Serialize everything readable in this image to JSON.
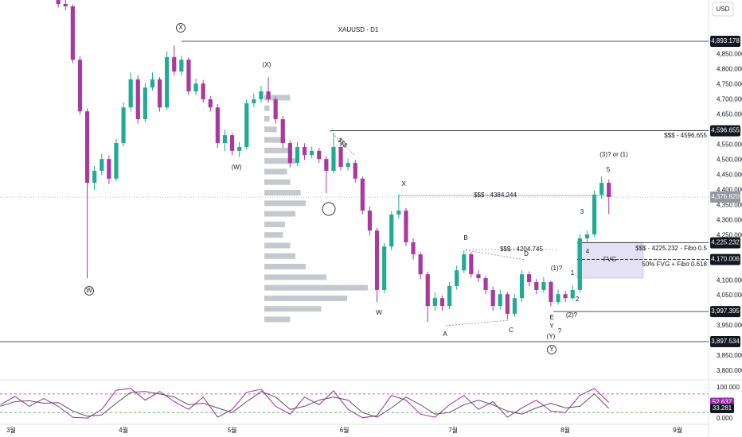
{
  "chart_data": {
    "type": "candlestick",
    "title": "XAUUSD · D1",
    "currency": "USD",
    "up_color": "#22ab94",
    "down_color": "#a9399f",
    "x": [
      13,
      15,
      17,
      19,
      21,
      23,
      25,
      27,
      29,
      31,
      33,
      35,
      37,
      39,
      41,
      43,
      45,
      47,
      49,
      51,
      53,
      55,
      57,
      59,
      61,
      63,
      65,
      67,
      69,
      71,
      73,
      75,
      77,
      79,
      81,
      83,
      85,
      87,
      89,
      91,
      93,
      95,
      97,
      99,
      101,
      103,
      105,
      107,
      109,
      111,
      113,
      115,
      117,
      119,
      121,
      123,
      125,
      127,
      129,
      131,
      133,
      135,
      137,
      139,
      141,
      143,
      145,
      147,
      149,
      151,
      153,
      155,
      157,
      159,
      161,
      163,
      165
    ],
    "ohlc": [
      [
        5030,
        5045,
        5005,
        5017
      ],
      [
        5017,
        5030,
        4995,
        5009
      ],
      [
        5009,
        5015,
        4820,
        4832
      ],
      [
        4832,
        4845,
        4650,
        4661
      ],
      [
        4661,
        4670,
        4108,
        4424
      ],
      [
        4424,
        4480,
        4400,
        4464
      ],
      [
        4464,
        4520,
        4450,
        4503
      ],
      [
        4503,
        4515,
        4420,
        4438
      ],
      [
        4438,
        4570,
        4430,
        4556
      ],
      [
        4556,
        4690,
        4545,
        4674
      ],
      [
        4674,
        4790,
        4660,
        4767
      ],
      [
        4767,
        4780,
        4620,
        4635
      ],
      [
        4635,
        4755,
        4625,
        4740
      ],
      [
        4740,
        4790,
        4730,
        4767
      ],
      [
        4767,
        4775,
        4660,
        4674
      ],
      [
        4674,
        4860,
        4665,
        4841
      ],
      [
        4841,
        4880,
        4780,
        4793
      ],
      [
        4793,
        4845,
        4780,
        4832
      ],
      [
        4832,
        4840,
        4715,
        4727
      ],
      [
        4727,
        4770,
        4715,
        4753
      ],
      [
        4753,
        4765,
        4690,
        4701
      ],
      [
        4701,
        4712,
        4660,
        4674
      ],
      [
        4674,
        4685,
        4540,
        4556
      ],
      [
        4556,
        4600,
        4530,
        4582
      ],
      [
        4582,
        4590,
        4515,
        4530
      ],
      [
        4530,
        4560,
        4510,
        4543
      ],
      [
        4543,
        4700,
        4535,
        4688
      ],
      [
        4688,
        4720,
        4675,
        4701
      ],
      [
        4701,
        4745,
        4690,
        4727
      ],
      [
        4727,
        4774,
        4690,
        4701
      ],
      [
        4701,
        4710,
        4620,
        4635
      ],
      [
        4635,
        4645,
        4540,
        4556
      ],
      [
        4556,
        4565,
        4475,
        4490
      ],
      [
        4490,
        4560,
        4480,
        4543
      ],
      [
        4543,
        4555,
        4500,
        4516
      ],
      [
        4516,
        4545,
        4505,
        4530
      ],
      [
        4530,
        4540,
        4490,
        4503
      ],
      [
        4503,
        4512,
        4390,
        4464
      ],
      [
        4464,
        4590,
        4455,
        4543
      ],
      [
        4543,
        4555,
        4465,
        4477
      ],
      [
        4477,
        4505,
        4465,
        4490
      ],
      [
        4490,
        4500,
        4425,
        4438
      ],
      [
        4438,
        4445,
        4320,
        4332
      ],
      [
        4332,
        4345,
        4250,
        4266
      ],
      [
        4266,
        4275,
        4029,
        4069
      ],
      [
        4069,
        4225,
        4060,
        4213
      ],
      [
        4213,
        4330,
        4200,
        4319
      ],
      [
        4319,
        4385,
        4305,
        4332
      ],
      [
        4332,
        4340,
        4215,
        4227
      ],
      [
        4227,
        4240,
        4170,
        4187
      ],
      [
        4187,
        4195,
        4105,
        4121
      ],
      [
        4121,
        4130,
        3963,
        4016
      ],
      [
        4016,
        4060,
        4000,
        4042
      ],
      [
        4042,
        4050,
        4000,
        4016
      ],
      [
        4016,
        4095,
        4005,
        4082
      ],
      [
        4082,
        4150,
        4070,
        4134
      ],
      [
        4134,
        4200,
        4125,
        4187
      ],
      [
        4187,
        4195,
        4110,
        4121
      ],
      [
        4121,
        4135,
        4095,
        4108
      ],
      [
        4108,
        4115,
        4055,
        4069
      ],
      [
        4069,
        4080,
        4000,
        4016
      ],
      [
        4016,
        4070,
        4005,
        4055
      ],
      [
        4055,
        4062,
        3971,
        3990
      ],
      [
        3990,
        4055,
        3980,
        4042
      ],
      [
        4042,
        4135,
        4030,
        4121
      ],
      [
        4121,
        4130,
        4080,
        4095
      ],
      [
        4095,
        4105,
        4055,
        4069
      ],
      [
        4069,
        4110,
        4060,
        4095
      ],
      [
        4095,
        4100,
        4015,
        4029
      ],
      [
        4029,
        4070,
        4020,
        4055
      ],
      [
        4055,
        4065,
        4030,
        4042
      ],
      [
        4042,
        4085,
        4035,
        4069
      ],
      [
        4069,
        4255,
        4060,
        4240
      ],
      [
        4240,
        4265,
        4225,
        4253
      ],
      [
        4253,
        4400,
        4245,
        4385
      ],
      [
        4385,
        4445,
        4370,
        4424
      ],
      [
        4424,
        4435,
        4320,
        4377
      ]
    ],
    "xlim": [
      -3.08,
      192.53
    ],
    "xticks": [
      {
        "value": 0,
        "label": "3월"
      },
      {
        "value": 31,
        "label": "4월"
      },
      {
        "value": 61,
        "label": "5월"
      },
      {
        "value": 92,
        "label": "6월"
      },
      {
        "value": 122,
        "label": "7월"
      },
      {
        "value": 153,
        "label": "8월"
      },
      {
        "value": 184,
        "label": "9월"
      }
    ],
    "ylim": [
      3771.2,
      5030.1
    ],
    "yticks": [
      {
        "value": 4850,
        "label": "4,850.000"
      },
      {
        "value": 4800,
        "label": "4,800.000"
      },
      {
        "value": 4750,
        "label": "4,750.000"
      },
      {
        "value": 4700,
        "label": "4,700.000"
      },
      {
        "value": 4650,
        "label": "4,650.000"
      },
      {
        "value": 4550,
        "label": "4,550.000"
      },
      {
        "value": 4500,
        "label": "4,500.000"
      },
      {
        "value": 4450,
        "label": "4,450.000"
      },
      {
        "value": 4400,
        "label": "4,400.000"
      },
      {
        "value": 4350,
        "label": "4,350.000"
      },
      {
        "value": 4300,
        "label": "4,300.000"
      },
      {
        "value": 4250,
        "label": "4,250.000"
      },
      {
        "value": 4100,
        "label": "4,100.000"
      },
      {
        "value": 4050,
        "label": "4,050.000"
      },
      {
        "value": 3950,
        "label": "3,950.000"
      },
      {
        "value": 3850,
        "label": "3,850.000"
      },
      {
        "value": 3800,
        "label": "3,800.000"
      }
    ],
    "price_levels": [
      {
        "value": 4893.178,
        "label": "4,893.178"
      },
      {
        "value": 4596.655,
        "label": "4,596.655"
      },
      {
        "value": 4225.232,
        "label": "4,225.232"
      },
      {
        "value": 4170.006,
        "label": "4,170.006"
      },
      {
        "value": 3997.395,
        "label": "3,997.395"
      },
      {
        "value": 3897.534,
        "label": "3,897.534"
      }
    ],
    "last_price": {
      "value": 4376.82,
      "label": "4,376.820"
    },
    "annotations": [
      "X",
      "(X)",
      "(W)",
      "W",
      "W",
      "X",
      "A",
      "B",
      "C",
      "D",
      "E",
      "Y",
      "(Y)",
      "?",
      "Y",
      "(1)?",
      "(2)?",
      "1",
      "2",
      "3",
      "4",
      "5",
      "(3)? or (1)",
      "$$$",
      "$$$ - 4384.244",
      "$$$ - 4204.745",
      "$$$ - 4596.655",
      "$$$ - 4225.232 - Fibo 0.5",
      "50% FVG + Fibo 0.618",
      "FVG"
    ],
    "volume_profile": {
      "levels": [
        4705,
        4670,
        4635,
        4600,
        4565,
        4530,
        4495,
        4460,
        4425,
        4390,
        4355,
        4320,
        4285,
        4250,
        4215,
        4180,
        4145,
        4110,
        4075,
        4040,
        4005,
        3970
      ],
      "values": [
        25,
        5,
        5,
        12,
        20,
        25,
        30,
        22,
        25,
        35,
        40,
        30,
        20,
        18,
        25,
        30,
        40,
        60,
        100,
        80,
        55,
        25
      ]
    },
    "oscillator": {
      "type": "line",
      "ylim": [
        -20.5,
        120.5
      ],
      "yticks": [
        {
          "value": 100,
          "label": "100.000"
        },
        {
          "value": 0,
          "label": "0.000"
        }
      ],
      "levels": [
        80,
        20
      ],
      "x": [
        -3,
        1,
        5,
        9,
        13,
        17,
        21,
        25,
        29,
        33,
        37,
        41,
        45,
        49,
        53,
        57,
        61,
        65,
        69,
        73,
        77,
        81,
        85,
        89,
        93,
        97,
        101,
        105,
        109,
        113,
        117,
        121,
        125,
        129,
        133,
        137,
        141,
        145,
        149,
        153,
        157,
        161,
        165
      ],
      "series": [
        {
          "color": "#9c27b0",
          "last_label": {
            "value": 52.637,
            "label": "52.637"
          },
          "values": [
            45,
            72,
            40,
            65,
            40,
            5,
            2,
            30,
            92,
            98,
            60,
            88,
            55,
            30,
            70,
            5,
            30,
            85,
            95,
            40,
            15,
            70,
            45,
            90,
            30,
            3,
            10,
            75,
            60,
            15,
            5,
            45,
            75,
            30,
            55,
            5,
            35,
            60,
            25,
            20,
            75,
            98,
            52.637
          ]
        },
        {
          "color": "#555555",
          "last_label": {
            "value": 33.281,
            "label": "33.281"
          },
          "values": [
            40,
            55,
            58,
            50,
            52,
            25,
            8,
            12,
            50,
            85,
            88,
            80,
            70,
            45,
            50,
            35,
            20,
            55,
            88,
            70,
            30,
            40,
            60,
            70,
            60,
            20,
            5,
            35,
            70,
            45,
            15,
            20,
            45,
            60,
            45,
            25,
            15,
            35,
            50,
            35,
            40,
            80,
            33.281
          ]
        }
      ]
    }
  }
}
